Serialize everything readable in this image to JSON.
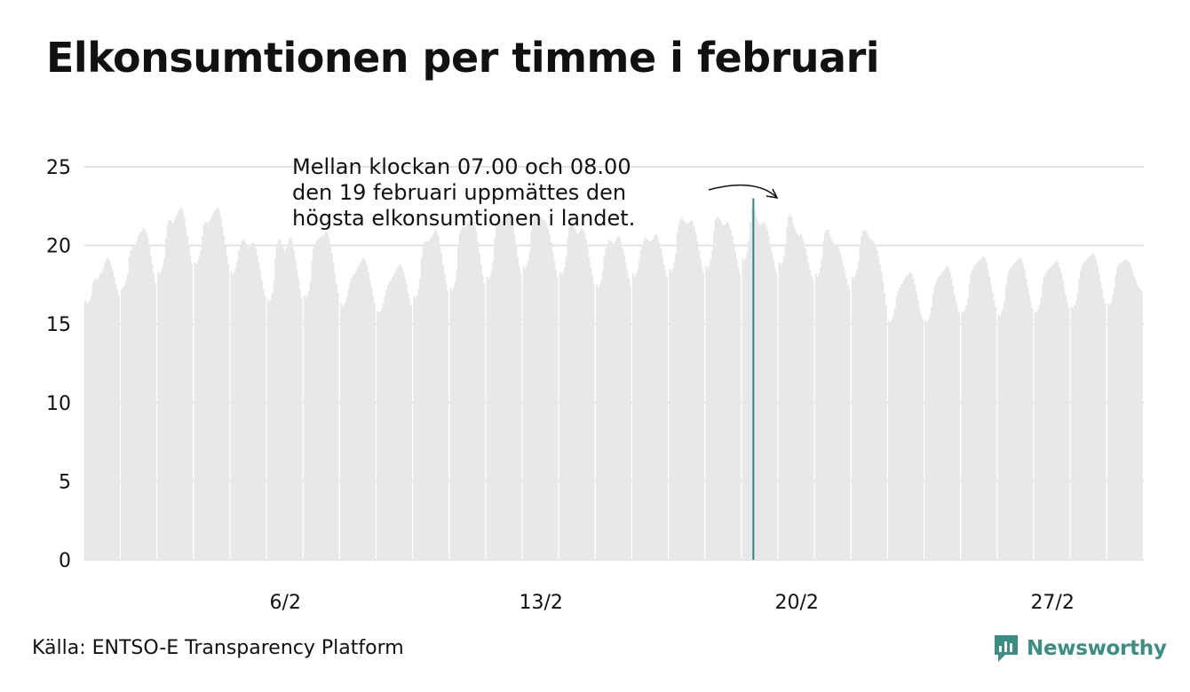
{
  "title": "Elkonsumtionen per timme i februari",
  "source": "Källa: ENTSO-E Transparency Platform",
  "logo": {
    "text": "Newsworthy",
    "icon": "newsworthy-chart-icon"
  },
  "colors": {
    "bars": "#e8e8e8",
    "highlight": "#2a8a7e",
    "grid": "#e3e3e3",
    "logo": "#3a8e84"
  },
  "annotation": {
    "lines": [
      "Mellan klockan 07.00 och 08.00",
      "den 19 februari uppmättes den",
      "högsta elkonsumtionen i landet."
    ]
  },
  "chart_data": {
    "type": "bar",
    "days": 29,
    "hours_per_day": 24,
    "ylim": [
      0,
      25
    ],
    "yticks": [
      0,
      5,
      10,
      15,
      20,
      25
    ],
    "xticks": [
      {
        "day": 6,
        "label": "6/2"
      },
      {
        "day": 13,
        "label": "13/2"
      },
      {
        "day": 20,
        "label": "20/2"
      },
      {
        "day": 27,
        "label": "27/2"
      }
    ],
    "highlight": {
      "day": 19,
      "hour": 7,
      "value": 23.0
    },
    "grid": true,
    "daily_values": [
      [
        16.5,
        16.3,
        16.4,
        16.5,
        16.8,
        17.6,
        17.8,
        17.9,
        17.8,
        18.0,
        18.2,
        18.3,
        18.6,
        18.9,
        19.1,
        19.2,
        19.0,
        18.7,
        18.4,
        18.0,
        17.6,
        17.2,
        16.8,
        16.4
      ],
      [
        17.2,
        17.3,
        17.5,
        17.8,
        18.2,
        19.3,
        19.7,
        19.9,
        20.0,
        20.1,
        20.3,
        20.6,
        20.8,
        20.9,
        21.1,
        21.0,
        20.8,
        20.5,
        20.0,
        19.4,
        18.8,
        18.2,
        17.6,
        17.2
      ],
      [
        18.3,
        18.2,
        18.4,
        18.7,
        19.2,
        20.4,
        21.3,
        21.6,
        21.6,
        21.4,
        21.5,
        21.7,
        21.9,
        22.1,
        22.3,
        22.4,
        22.2,
        21.8,
        21.2,
        20.6,
        20.0,
        19.4,
        18.8,
        18.4
      ],
      [
        18.9,
        18.8,
        19.0,
        19.3,
        19.7,
        20.6,
        21.3,
        21.5,
        21.5,
        21.4,
        21.6,
        21.8,
        22.0,
        22.2,
        22.3,
        22.4,
        22.2,
        21.8,
        21.2,
        20.6,
        20.0,
        19.4,
        18.8,
        18.4
      ],
      [
        18.3,
        18.1,
        18.3,
        18.6,
        19.0,
        19.7,
        20.0,
        20.3,
        20.4,
        20.2,
        20.0,
        19.8,
        19.9,
        20.0,
        20.2,
        20.1,
        19.8,
        19.4,
        18.9,
        18.4,
        17.8,
        17.2,
        16.8,
        16.4
      ],
      [
        16.6,
        16.4,
        16.6,
        17.0,
        17.8,
        19.2,
        20.0,
        20.3,
        20.4,
        20.1,
        19.8,
        19.6,
        19.8,
        20.0,
        20.4,
        20.5,
        20.2,
        19.7,
        19.1,
        18.5,
        17.9,
        17.2,
        16.7,
        16.3
      ],
      [
        16.8,
        16.6,
        16.8,
        17.1,
        17.7,
        19.0,
        19.8,
        20.1,
        20.3,
        20.4,
        20.5,
        20.6,
        20.6,
        20.7,
        20.9,
        20.8,
        20.5,
        20.1,
        19.5,
        18.9,
        18.2,
        17.6,
        17.0,
        16.6
      ],
      [
        16.3,
        16.1,
        16.2,
        16.4,
        16.7,
        17.2,
        17.6,
        17.9,
        18.1,
        18.2,
        18.4,
        18.6,
        18.8,
        18.9,
        19.1,
        19.2,
        19.0,
        18.7,
        18.3,
        17.8,
        17.3,
        16.8,
        16.3,
        15.8
      ],
      [
        15.8,
        15.7,
        15.8,
        16.0,
        16.3,
        16.8,
        17.2,
        17.5,
        17.7,
        17.8,
        18.0,
        18.2,
        18.4,
        18.6,
        18.7,
        18.8,
        18.6,
        18.3,
        17.9,
        17.5,
        17.0,
        16.6,
        16.2,
        15.8
      ],
      [
        16.8,
        16.6,
        16.8,
        17.2,
        17.9,
        19.2,
        19.9,
        20.2,
        20.3,
        20.2,
        20.3,
        20.5,
        20.6,
        20.8,
        21.0,
        20.9,
        20.6,
        20.1,
        19.5,
        18.8,
        18.2,
        17.6,
        17.1,
        16.7
      ],
      [
        17.3,
        17.1,
        17.3,
        17.7,
        18.4,
        19.9,
        20.7,
        21.0,
        21.2,
        21.1,
        21.2,
        21.3,
        21.4,
        21.5,
        21.6,
        21.5,
        21.2,
        20.8,
        20.2,
        19.5,
        18.8,
        18.1,
        17.6,
        17.2
      ],
      [
        18.0,
        17.8,
        18.0,
        18.4,
        19.0,
        20.5,
        21.2,
        21.5,
        21.6,
        21.5,
        21.6,
        21.8,
        21.9,
        22.0,
        22.2,
        22.1,
        21.8,
        21.3,
        20.7,
        20.0,
        19.3,
        18.7,
        18.2,
        17.8
      ],
      [
        18.7,
        18.5,
        18.7,
        19.0,
        19.6,
        20.9,
        21.6,
        21.8,
        22.0,
        21.9,
        21.8,
        21.8,
        21.7,
        21.6,
        21.6,
        21.4,
        21.1,
        20.7,
        20.2,
        19.6,
        19.0,
        18.5,
        18.0,
        17.7
      ],
      [
        18.3,
        18.1,
        18.3,
        18.6,
        19.3,
        20.5,
        21.2,
        21.4,
        21.5,
        21.2,
        21.0,
        20.8,
        20.8,
        20.9,
        21.1,
        21.0,
        20.8,
        20.4,
        19.8,
        19.2,
        18.6,
        18.1,
        17.6,
        17.2
      ],
      [
        17.5,
        17.3,
        17.5,
        17.8,
        18.4,
        19.3,
        19.8,
        20.1,
        20.3,
        20.3,
        20.2,
        20.1,
        20.2,
        20.4,
        20.6,
        20.5,
        20.2,
        19.8,
        19.4,
        18.9,
        18.4,
        17.9,
        17.5,
        17.2
      ],
      [
        18.2,
        18.0,
        18.2,
        18.5,
        19.0,
        19.7,
        20.0,
        20.3,
        20.5,
        20.4,
        20.3,
        20.2,
        20.3,
        20.4,
        20.6,
        20.7,
        20.5,
        20.2,
        19.8,
        19.3,
        18.8,
        18.4,
        18.0,
        17.8
      ],
      [
        18.5,
        18.3,
        18.5,
        18.9,
        19.5,
        20.8,
        21.4,
        21.6,
        21.7,
        21.6,
        21.5,
        21.4,
        21.4,
        21.5,
        21.6,
        21.5,
        21.2,
        20.8,
        20.3,
        19.7,
        19.2,
        18.7,
        18.3,
        18.0
      ],
      [
        18.7,
        18.5,
        18.7,
        19.1,
        19.7,
        20.9,
        21.6,
        21.8,
        21.8,
        21.6,
        21.4,
        21.3,
        21.3,
        21.4,
        21.5,
        21.3,
        21.0,
        20.6,
        20.1,
        19.6,
        19.1,
        18.6,
        18.2,
        18.0
      ],
      [
        19.2,
        19.0,
        19.2,
        19.6,
        20.3,
        21.5,
        22.4,
        23.0,
        22.3,
        21.8,
        21.5,
        21.3,
        21.3,
        21.4,
        21.5,
        21.3,
        21.0,
        20.6,
        20.1,
        19.6,
        19.1,
        18.6,
        18.3,
        18.0
      ],
      [
        18.9,
        18.7,
        18.9,
        19.3,
        20.0,
        21.2,
        21.8,
        22.0,
        21.8,
        21.4,
        21.1,
        20.8,
        20.7,
        20.6,
        20.7,
        20.5,
        20.2,
        19.8,
        19.4,
        18.9,
        18.5,
        18.1,
        17.8,
        17.5
      ],
      [
        18.2,
        18.0,
        18.2,
        18.6,
        19.2,
        20.3,
        20.8,
        21.0,
        21.0,
        20.7,
        20.4,
        20.2,
        20.1,
        20.0,
        20.0,
        19.8,
        19.5,
        19.1,
        18.7,
        18.3,
        17.9,
        17.5,
        17.2,
        16.9
      ],
      [
        18.0,
        17.9,
        18.1,
        18.5,
        19.0,
        20.0,
        20.6,
        20.9,
        21.0,
        20.9,
        20.7,
        20.5,
        20.4,
        20.3,
        20.2,
        20.0,
        19.7,
        19.3,
        18.8,
        18.3,
        17.7,
        17.0,
        16.2,
        15.6
      ],
      [
        15.2,
        15.1,
        15.3,
        15.6,
        16.0,
        16.7,
        17.1,
        17.3,
        17.5,
        17.6,
        17.8,
        18.0,
        18.1,
        18.2,
        18.3,
        18.2,
        17.9,
        17.5,
        17.0,
        16.5,
        16.0,
        15.6,
        15.3,
        15.1
      ],
      [
        15.2,
        15.1,
        15.3,
        15.6,
        16.1,
        16.9,
        17.4,
        17.7,
        17.9,
        18.0,
        18.1,
        18.3,
        18.4,
        18.6,
        18.7,
        18.6,
        18.3,
        17.9,
        17.4,
        16.9,
        16.4,
        16.0,
        15.7,
        15.5
      ],
      [
        15.8,
        15.7,
        15.9,
        16.2,
        16.7,
        17.6,
        18.2,
        18.5,
        18.7,
        18.8,
        18.9,
        19.0,
        19.1,
        19.2,
        19.3,
        19.2,
        18.9,
        18.5,
        18.0,
        17.5,
        17.0,
        16.5,
        16.1,
        15.8
      ],
      [
        15.6,
        15.5,
        15.7,
        16.0,
        16.5,
        17.5,
        18.1,
        18.4,
        18.6,
        18.7,
        18.8,
        18.9,
        19.0,
        19.1,
        19.2,
        19.1,
        18.8,
        18.4,
        17.9,
        17.4,
        16.9,
        16.4,
        16.0,
        15.7
      ],
      [
        15.8,
        15.7,
        15.9,
        16.2,
        16.7,
        17.5,
        18.0,
        18.2,
        18.4,
        18.5,
        18.6,
        18.7,
        18.8,
        18.9,
        19.0,
        18.9,
        18.6,
        18.3,
        17.8,
        17.3,
        16.8,
        16.4,
        16.0,
        15.7
      ],
      [
        16.1,
        16.0,
        16.2,
        16.5,
        17.0,
        17.9,
        18.4,
        18.7,
        18.9,
        19.0,
        19.1,
        19.2,
        19.3,
        19.4,
        19.5,
        19.4,
        19.1,
        18.7,
        18.2,
        17.7,
        17.2,
        16.7,
        16.3,
        16.0
      ],
      [
        16.3,
        16.2,
        16.4,
        16.8,
        17.3,
        18.1,
        18.6,
        18.8,
        18.9,
        18.9,
        19.0,
        19.1,
        19.1,
        19.0,
        18.9,
        18.7,
        18.4,
        18.1,
        17.8,
        17.5,
        17.3,
        17.2,
        17.1,
        17.0
      ]
    ]
  }
}
